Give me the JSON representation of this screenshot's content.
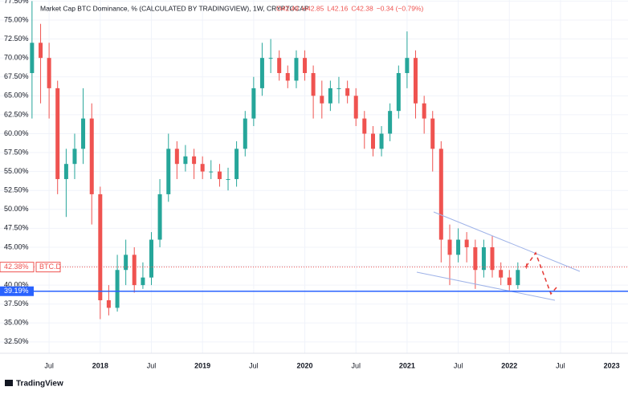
{
  "chart_data": {
    "type": "candlestick",
    "title": "Market Cap BTC Dominance, % (CALCULATED BY TRADINGVIEW), 1W, CRYPTOCAP",
    "ohlc_labels": [
      "O42.49",
      "H42.85",
      "L42.16",
      "C42.38",
      "−0.34 (−0.79%)"
    ],
    "brand": "TradingView",
    "x": [
      2017.333,
      2017.417,
      2017.5,
      2017.583,
      2017.667,
      2017.75,
      2017.833,
      2017.917,
      2018.0,
      2018.083,
      2018.167,
      2018.25,
      2018.333,
      2018.417,
      2018.5,
      2018.583,
      2018.667,
      2018.75,
      2018.833,
      2018.917,
      2019.0,
      2019.083,
      2019.167,
      2019.25,
      2019.333,
      2019.417,
      2019.5,
      2019.583,
      2019.667,
      2019.75,
      2019.833,
      2019.917,
      2020.0,
      2020.083,
      2020.167,
      2020.25,
      2020.333,
      2020.417,
      2020.5,
      2020.583,
      2020.667,
      2020.75,
      2020.833,
      2020.917,
      2021.0,
      2021.083,
      2021.167,
      2021.25,
      2021.333,
      2021.417,
      2021.5,
      2021.583,
      2021.667,
      2021.75,
      2021.833,
      2021.917,
      2022.0,
      2022.083,
      2022.167
    ],
    "open": [
      68,
      72,
      70,
      66,
      54,
      56,
      58,
      62,
      52,
      38,
      37,
      42,
      44,
      40,
      41,
      46,
      52,
      58,
      56,
      57,
      56,
      55,
      55,
      54,
      54,
      58,
      62,
      66,
      70,
      70,
      68,
      67,
      70,
      68,
      65,
      64,
      66,
      66,
      65,
      62,
      60,
      58,
      60,
      63,
      68,
      70,
      64,
      62,
      58,
      46,
      44,
      46,
      45,
      42,
      45,
      42,
      41,
      40,
      42.49
    ],
    "high": [
      77.5,
      74.5,
      72,
      67,
      58,
      60,
      66,
      64,
      53,
      40,
      44,
      46,
      45,
      43,
      47,
      54,
      60,
      59,
      58.5,
      58,
      57,
      56.5,
      56,
      55.5,
      59,
      63,
      67.5,
      72,
      72.5,
      71,
      69,
      71,
      71,
      69,
      67,
      67,
      67.5,
      67,
      66,
      63,
      61,
      61,
      64,
      69,
      73.5,
      71,
      65,
      63,
      59,
      48,
      47.5,
      47,
      46,
      46,
      46.5,
      43,
      42,
      43,
      42.85
    ],
    "low": [
      62,
      64,
      62,
      52,
      49,
      54,
      56,
      48,
      35.5,
      36,
      36.5,
      40,
      39,
      39.5,
      40,
      45,
      51,
      54,
      55,
      54,
      54,
      54,
      53,
      52.5,
      53,
      57,
      61,
      65,
      68,
      67,
      66,
      66,
      67,
      62,
      62,
      63,
      64,
      64,
      61,
      58,
      57,
      57,
      59,
      62,
      66,
      62,
      60,
      55,
      43,
      40,
      43,
      43,
      39.5,
      41,
      41,
      40,
      39.3,
      39.5,
      42.16
    ],
    "close": [
      72,
      70,
      66,
      54,
      56,
      58,
      62,
      52,
      38,
      37,
      42,
      44,
      40,
      41,
      46,
      52,
      58,
      56,
      57,
      56,
      55,
      55,
      54,
      54,
      58,
      62,
      66,
      70,
      70,
      68,
      67,
      70,
      68,
      65,
      64,
      66,
      66,
      65,
      62,
      60,
      58,
      60,
      63,
      68,
      70,
      64,
      62,
      58,
      46,
      44,
      46,
      45,
      42,
      45,
      42,
      41,
      40,
      42,
      42.38
    ],
    "up_color": "#26a69a",
    "down_color": "#ef5350",
    "xlim": [
      2017.02,
      2023.16
    ],
    "ylim": [
      31,
      77.65
    ],
    "xticks": [
      {
        "value": 2017.5,
        "label": "Jul"
      },
      2018,
      {
        "value": 2018.5,
        "label": "Jul"
      },
      2019,
      {
        "value": 2019.5,
        "label": "Jul"
      },
      2020,
      {
        "value": 2020.5,
        "label": "Jul"
      },
      2021,
      {
        "value": 2021.5,
        "label": "Jul"
      },
      2022,
      {
        "value": 2022.5,
        "label": "Jul"
      },
      2023
    ],
    "yticks": [
      {
        "value": 32.5,
        "label": "32.50%"
      },
      {
        "value": 35,
        "label": "35.00%"
      },
      {
        "value": 37.5,
        "label": "37.50%"
      },
      {
        "value": 40,
        "label": "40.00%"
      },
      {
        "value": 42.5,
        "label": "42.50%"
      },
      {
        "value": 45,
        "label": "45.00%"
      },
      {
        "value": 47.5,
        "label": "47.50%"
      },
      {
        "value": 50,
        "label": "50.00%"
      },
      {
        "value": 52.5,
        "label": "52.50%"
      },
      {
        "value": 55,
        "label": "55.00%"
      },
      {
        "value": 57.5,
        "label": "57.50%"
      },
      {
        "value": 60,
        "label": "60.00%"
      },
      {
        "value": 62.5,
        "label": "62.50%"
      },
      {
        "value": 65,
        "label": "65.00%"
      },
      {
        "value": 67.5,
        "label": "67.50%"
      },
      {
        "value": 70,
        "label": "70.00%"
      },
      {
        "value": 72.5,
        "label": "72.50%"
      },
      {
        "value": 75,
        "label": "75.00%"
      },
      {
        "value": 77.5,
        "label": "77.50%"
      }
    ],
    "grid": true,
    "price_line": {
      "value": 42.38,
      "label": "42.38%",
      "symbol": "BTC.D",
      "color": "#ef5350"
    },
    "level_line": {
      "value": 39.19,
      "label": "39.19%",
      "color": "#2962ff"
    }
  }
}
